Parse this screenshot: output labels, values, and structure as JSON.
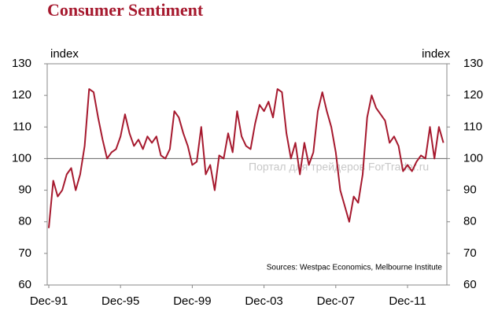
{
  "chart_data": {
    "type": "line",
    "title": "Consumer Sentiment",
    "y_label": "index",
    "y2_label": "index",
    "source": "Sources: Westpac Economics, Melbourne Institute",
    "watermark": "Портал для трейдеров ForTrader.ru",
    "categories": [
      "Dec-91",
      null,
      null,
      null,
      null,
      null,
      null,
      null,
      null,
      null,
      null,
      null,
      null,
      null,
      null,
      null,
      "Dec-95",
      null,
      null,
      null,
      null,
      null,
      null,
      null,
      null,
      null,
      null,
      null,
      null,
      null,
      null,
      null,
      "Dec-99",
      null,
      null,
      null,
      null,
      null,
      null,
      null,
      null,
      null,
      null,
      null,
      null,
      null,
      null,
      null,
      "Dec-03",
      null,
      null,
      null,
      null,
      null,
      null,
      null,
      null,
      null,
      null,
      null,
      null,
      null,
      null,
      null,
      "Dec-07",
      null,
      null,
      null,
      null,
      null,
      null,
      null,
      null,
      null,
      null,
      null,
      null,
      null,
      null,
      null,
      "Dec-11",
      null,
      null,
      null,
      null,
      null,
      null,
      null,
      null
    ],
    "series": [
      {
        "name": "Consumer Sentiment",
        "color": "#a6192e",
        "values": [
          78,
          93,
          88,
          90,
          95,
          97,
          90,
          95,
          104,
          122,
          121,
          113,
          106,
          100,
          102,
          103,
          107,
          114,
          108,
          104,
          106,
          103,
          107,
          105,
          107,
          101,
          100,
          103,
          115,
          113,
          108,
          104,
          98,
          99,
          110,
          95,
          98,
          90,
          101,
          100,
          108,
          102,
          115,
          107,
          104,
          103,
          111,
          117,
          115,
          118,
          113,
          122,
          121,
          108,
          100,
          105,
          95,
          105,
          98,
          102,
          115,
          121,
          115,
          110,
          102,
          90,
          85,
          80,
          88,
          86,
          95,
          113,
          120,
          116,
          114,
          112,
          105,
          107,
          104,
          96,
          98,
          96,
          99,
          101,
          100,
          110,
          100,
          110,
          105
        ]
      }
    ],
    "reference_line": 100,
    "ylim": [
      60,
      130
    ],
    "yticks": [
      60,
      70,
      80,
      90,
      100,
      110,
      120,
      130
    ],
    "y2lim": [
      60,
      130
    ],
    "y2ticks": [
      60,
      70,
      80,
      90,
      100,
      110,
      120,
      130
    ]
  }
}
